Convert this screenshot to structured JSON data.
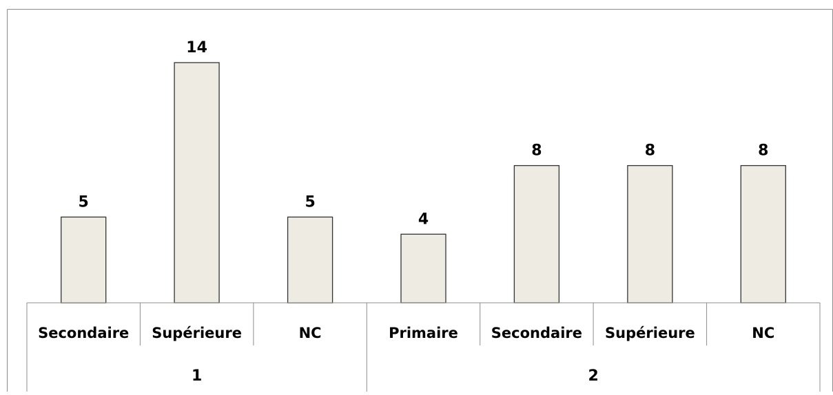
{
  "chart_data": {
    "type": "bar",
    "groups": [
      {
        "label": "1",
        "categories": [
          "Secondaire",
          "Supérieure",
          "NC"
        ],
        "values": [
          5,
          14,
          5
        ]
      },
      {
        "label": "2",
        "categories": [
          "Primaire",
          "Secondaire",
          "Supérieure",
          "NC"
        ],
        "values": [
          4,
          8,
          8,
          8
        ]
      }
    ],
    "categories": [
      "Secondaire",
      "Supérieure",
      "NC",
      "Primaire",
      "Secondaire",
      "Supérieure",
      "NC"
    ],
    "values": [
      5,
      14,
      5,
      4,
      8,
      8,
      8
    ],
    "ylim": [
      0,
      16
    ],
    "data_labels": true,
    "grid": false,
    "legend": "none",
    "bar_fill": "#eeebe2",
    "bar_stroke": "#333333",
    "axis_color": "#8c8c8c",
    "border_color": "#8c8c8c"
  }
}
